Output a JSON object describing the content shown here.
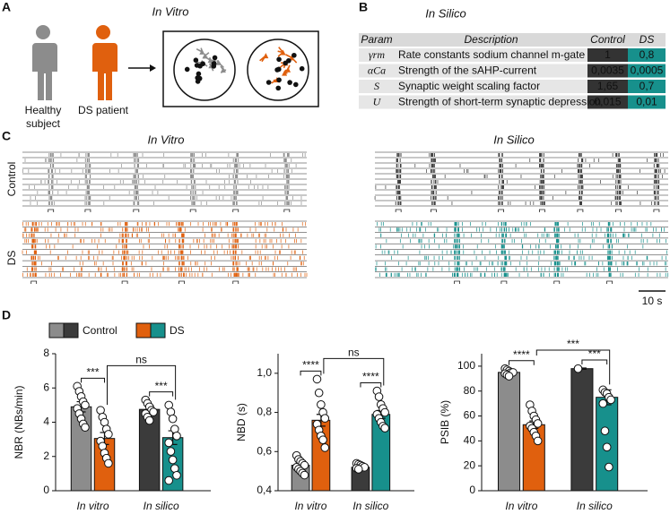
{
  "panel_labels": [
    "A",
    "B",
    "C",
    "D"
  ],
  "panel_a": {
    "title": "In Vitro",
    "healthy_label": [
      "Healthy",
      "subject"
    ],
    "patient_label": "DS patient"
  },
  "panel_b": {
    "title": "In Silico",
    "table": {
      "header": [
        "Param",
        "Description",
        "Control",
        "DS"
      ],
      "rows": [
        [
          "γrm",
          "Rate constants sodium channel m-gate",
          "1",
          "0,8"
        ],
        [
          "αCa",
          "Strength of the sAHP-current",
          "0,0035",
          "0,0005"
        ],
        [
          "S",
          "Synaptic weight scaling factor",
          "1,65",
          "0,7"
        ],
        [
          "U",
          "Strength of short-term synaptic depression",
          "0,015",
          "0,01"
        ]
      ]
    }
  },
  "panel_c": {
    "titles": [
      "In Vitro",
      "In Silico"
    ],
    "row_labels": [
      "Control",
      "DS"
    ],
    "scale_bar": "10 s"
  },
  "legend": [
    {
      "name": "Control",
      "colors": [
        "#8c8c8c",
        "#3b3b3b"
      ]
    },
    {
      "name": "DS",
      "colors": [
        "#e0600e",
        "#17908c"
      ]
    }
  ],
  "chart_data": [
    {
      "type": "bar",
      "y_label": "NBR (NBs/min)",
      "categories": [
        "In vitro",
        "In silico"
      ],
      "ylim": [
        0,
        8
      ],
      "yticks": [
        0,
        2,
        4,
        6,
        8
      ],
      "annotations": [
        "***",
        "***",
        "ns"
      ],
      "series": [
        {
          "colors": [
            "#8c8c8c",
            "#3b3b3b"
          ],
          "values": [
            4.9,
            4.75
          ],
          "errors": [
            0.3,
            0.2
          ],
          "points": [
            [
              6.1,
              5.8,
              5.5,
              5.2,
              5.0,
              4.8,
              4.5,
              4.2,
              3.9,
              3.7
            ],
            [
              5.3,
              5.1,
              4.9,
              4.7,
              4.6,
              4.5,
              4.3,
              4.1
            ]
          ]
        },
        {
          "colors": [
            "#e0600e",
            "#17908c"
          ],
          "values": [
            3.05,
            3.1
          ],
          "errors": [
            0.35,
            0.4
          ],
          "points": [
            [
              4.7,
              4.3,
              4.0,
              3.6,
              3.3,
              2.9,
              2.6,
              2.2,
              1.9,
              1.6
            ],
            [
              5.0,
              4.6,
              4.2,
              3.6,
              3.2,
              2.8,
              2.3,
              1.8,
              1.3,
              0.9,
              0.6
            ]
          ]
        }
      ]
    },
    {
      "type": "bar",
      "y_label": "NBD (s)",
      "categories": [
        "In vitro",
        "In silico"
      ],
      "ylim": [
        0.4,
        1.1
      ],
      "yticks": [
        {
          "value": 0.4,
          "label": "0,4"
        },
        {
          "value": 0.6,
          "label": "0,6"
        },
        {
          "value": 0.8,
          "label": "0,8"
        },
        {
          "value": 1.0,
          "label": "1,0"
        }
      ],
      "annotations": [
        "****",
        "****",
        "ns"
      ],
      "series": [
        {
          "colors": [
            "#8c8c8c",
            "#3b3b3b"
          ],
          "values": [
            0.53,
            0.52
          ],
          "errors": [
            0.02,
            0.01
          ],
          "points": [
            [
              0.58,
              0.56,
              0.55,
              0.54,
              0.53,
              0.52,
              0.51,
              0.5,
              0.49,
              0.48
            ],
            [
              0.54,
              0.535,
              0.53,
              0.525,
              0.52,
              0.515,
              0.51
            ]
          ]
        },
        {
          "colors": [
            "#e0600e",
            "#17908c"
          ],
          "values": [
            0.76,
            0.79
          ],
          "errors": [
            0.03,
            0.02
          ],
          "points": [
            [
              0.97,
              0.9,
              0.84,
              0.8,
              0.77,
              0.74,
              0.71,
              0.68,
              0.66,
              0.62
            ],
            [
              0.91,
              0.88,
              0.84,
              0.82,
              0.8,
              0.79,
              0.77,
              0.75,
              0.73,
              0.72
            ]
          ]
        }
      ]
    },
    {
      "type": "bar",
      "y_label": "PSIB (%)",
      "categories": [
        "In vitro",
        "In silico"
      ],
      "ylim": [
        0,
        110
      ],
      "yticks": [
        0,
        20,
        40,
        60,
        80,
        100
      ],
      "annotations": [
        "****",
        "***",
        "***"
      ],
      "series": [
        {
          "colors": [
            "#8c8c8c",
            "#3b3b3b"
          ],
          "values": [
            95,
            98
          ],
          "errors": [
            1,
            0.5
          ],
          "points": [
            [
              98,
              97,
              96,
              95,
              95,
              94,
              93,
              92
            ],
            [
              98
            ]
          ]
        },
        {
          "colors": [
            "#e0600e",
            "#17908c"
          ],
          "values": [
            53,
            75
          ],
          "errors": [
            3,
            6
          ],
          "points": [
            [
              69,
              64,
              60,
              57,
              54,
              52,
              50,
              47,
              44,
              40
            ],
            [
              81,
              79,
              78,
              75,
              73,
              70,
              48,
              35,
              19
            ]
          ]
        }
      ]
    }
  ]
}
